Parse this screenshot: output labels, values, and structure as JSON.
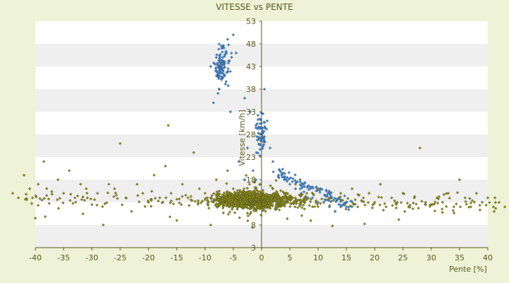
{
  "chart_data": {
    "type": "scatter",
    "title": "VITESSE vs PENTE",
    "xlabel": "Pente [%]",
    "ylabel": "Vitesse [km/h]",
    "xlim": [
      -40,
      40
    ],
    "ylim": [
      3,
      53
    ],
    "x_ticks": [
      -40,
      -35,
      -30,
      -25,
      -20,
      -15,
      -10,
      -5,
      0,
      5,
      10,
      15,
      20,
      25,
      30,
      35,
      40
    ],
    "y_ticks": [
      3,
      8,
      13,
      18,
      23,
      28,
      33,
      38,
      43,
      48,
      53
    ],
    "grid": "horizontal bands",
    "colors": {
      "background": "#eef2d6",
      "band_light": "#ffffff",
      "band_dark": "#efefef",
      "axis": "#5a5a1e",
      "series_olive": "#8a8a14",
      "series_blue": "#3a86d6"
    },
    "series": [
      {
        "color": "#8a8a14",
        "marker": "diamond",
        "description_points": [
          [
            -44,
            15
          ],
          [
            -43,
            14
          ],
          [
            -42,
            19
          ],
          [
            -41,
            16
          ],
          [
            -40.5,
            14
          ],
          [
            -40,
            9.5
          ],
          [
            -39.5,
            17
          ],
          [
            -38.5,
            22
          ],
          [
            -38,
            14.5
          ],
          [
            -36,
            18
          ],
          [
            -35,
            15
          ],
          [
            -34,
            20
          ],
          [
            -33,
            14
          ],
          [
            -32,
            17
          ],
          [
            -31,
            16
          ],
          [
            -30,
            12.5
          ],
          [
            -29,
            15
          ],
          [
            -28,
            8
          ],
          [
            -27,
            17
          ],
          [
            -26,
            16
          ],
          [
            -25,
            26
          ],
          [
            -24,
            14
          ],
          [
            -23,
            11
          ],
          [
            -22,
            17
          ],
          [
            -21,
            15
          ],
          [
            -20,
            13
          ],
          [
            -19,
            19
          ],
          [
            -18,
            14
          ],
          [
            -17,
            21
          ],
          [
            -16.5,
            30
          ],
          [
            -16,
            15
          ],
          [
            -15,
            9
          ],
          [
            -14,
            17
          ],
          [
            -13,
            14
          ],
          [
            -12,
            24
          ],
          [
            -11,
            16
          ],
          [
            -10,
            15
          ],
          [
            -9,
            8
          ],
          [
            -8,
            18
          ],
          [
            -7,
            13
          ],
          [
            -6,
            20
          ],
          [
            -5,
            16
          ],
          [
            -4,
            13
          ],
          [
            -3,
            18
          ],
          [
            -2,
            14
          ],
          [
            -1,
            16
          ],
          [
            0,
            15
          ],
          [
            1,
            14
          ],
          [
            2,
            16
          ],
          [
            3,
            13
          ],
          [
            4,
            15
          ],
          [
            5,
            14
          ],
          [
            6,
            17
          ],
          [
            7,
            13
          ],
          [
            8,
            15
          ],
          [
            9,
            12
          ],
          [
            10,
            16
          ],
          [
            11,
            13
          ],
          [
            12,
            14
          ],
          [
            13,
            11
          ],
          [
            14,
            15
          ],
          [
            15,
            13
          ],
          [
            16,
            16
          ],
          [
            17,
            12
          ],
          [
            18,
            14
          ],
          [
            19,
            15
          ],
          [
            20,
            13
          ],
          [
            21,
            17
          ],
          [
            22,
            12
          ],
          [
            23,
            14
          ],
          [
            24,
            13
          ],
          [
            25,
            15
          ],
          [
            26,
            12
          ],
          [
            27,
            14
          ],
          [
            28,
            25
          ],
          [
            29,
            13
          ],
          [
            30,
            12.5
          ],
          [
            31,
            14
          ],
          [
            32,
            13
          ],
          [
            33,
            15
          ],
          [
            34,
            12
          ],
          [
            35,
            18
          ],
          [
            36,
            14
          ],
          [
            37,
            12
          ],
          [
            38,
            15
          ],
          [
            39,
            13
          ],
          [
            40,
            14
          ],
          [
            41,
            12
          ],
          [
            42,
            13
          ],
          [
            43,
            12
          ]
        ]
      },
      {
        "color": "#3a86d6",
        "marker": "diamond",
        "description_points": [
          [
            -9,
            43
          ],
          [
            -8,
            45
          ],
          [
            -7,
            47
          ],
          [
            -6,
            49
          ],
          [
            -5,
            50
          ],
          [
            -4.5,
            46
          ],
          [
            -6.5,
            41
          ],
          [
            -7.5,
            38
          ],
          [
            -8.5,
            35
          ],
          [
            -5.5,
            33
          ],
          [
            -3,
            36
          ],
          [
            -2,
            33
          ],
          [
            -1,
            30
          ],
          [
            0.5,
            38
          ],
          [
            1,
            31
          ],
          [
            -0.5,
            27
          ],
          [
            1.5,
            25
          ],
          [
            2,
            22
          ],
          [
            -2.5,
            25
          ],
          [
            -4,
            22
          ],
          [
            -1.5,
            20
          ],
          [
            3,
            19
          ],
          [
            4,
            18
          ],
          [
            5,
            17
          ],
          [
            6,
            16
          ],
          [
            7,
            15
          ],
          [
            8,
            14
          ],
          [
            9,
            14
          ],
          [
            10,
            13
          ],
          [
            11,
            13
          ],
          [
            12,
            12
          ],
          [
            13,
            11
          ],
          [
            14,
            12
          ],
          [
            15,
            12
          ],
          [
            -3,
            18
          ],
          [
            -1,
            18
          ]
        ]
      }
    ]
  }
}
